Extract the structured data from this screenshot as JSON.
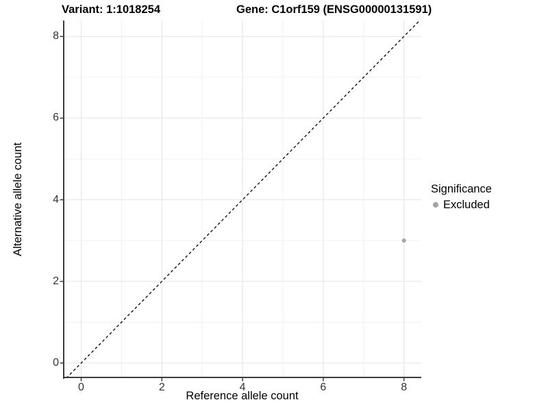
{
  "titles": {
    "variant": "Variant: 1:1018254",
    "gene": "Gene: C1orf159 (ENSG00000131591)"
  },
  "axes": {
    "x_label": "Reference allele count",
    "y_label": "Alternative allele count",
    "x_ticks": [
      0,
      2,
      4,
      6,
      8
    ],
    "y_ticks": [
      0,
      2,
      4,
      6,
      8
    ],
    "x_minor_ticks": [
      1,
      3,
      5,
      7
    ],
    "y_minor_ticks": [
      1,
      3,
      5,
      7
    ]
  },
  "legend": {
    "title": "Significance",
    "items": [
      {
        "label": "Excluded",
        "color": "#a3a3a3"
      }
    ]
  },
  "chart_data": {
    "type": "scatter",
    "title": "Variant: 1:1018254    Gene: C1orf159 (ENSG00000131591)",
    "xlabel": "Reference allele count",
    "ylabel": "Alternative allele count",
    "xlim": [
      -0.45,
      8.43
    ],
    "ylim": [
      -0.37,
      8.39
    ],
    "grid": "major+minor",
    "legend_position": "right",
    "legend_title": "Significance",
    "series": [
      {
        "name": "Excluded",
        "color": "#a3a3a3",
        "points": [
          {
            "x": 8,
            "y": 3
          }
        ]
      }
    ],
    "reference_line": {
      "type": "identity y=x",
      "style": "dashed",
      "color": "#000000"
    }
  },
  "colors": {
    "point": "#a3a3a3",
    "grid_major": "#e4e4e4",
    "grid_minor": "#f1f1f1",
    "axis_line": "#3c3c3c",
    "dashed_line": "#000000",
    "tick_label": "#333333",
    "background": "#ffffff"
  }
}
